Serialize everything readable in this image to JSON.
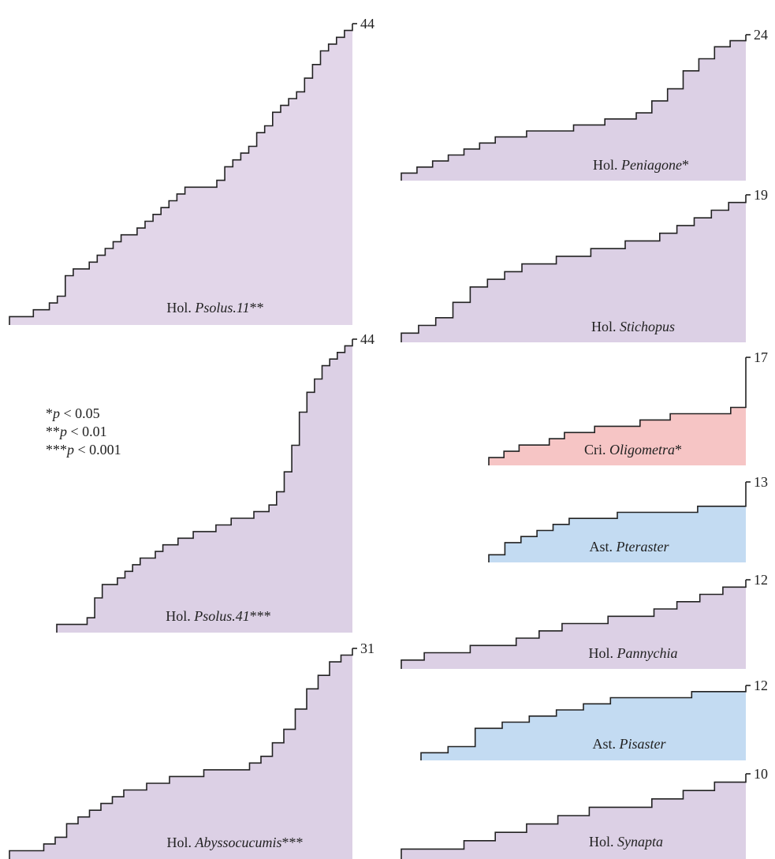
{
  "significance_legend": [
    {
      "stars": "*",
      "p": "p",
      "text": " < 0.05"
    },
    {
      "stars": "**",
      "p": "p",
      "text": " < 0.01"
    },
    {
      "stars": "***",
      "p": "p",
      "text": " < 0.001"
    }
  ],
  "chart_data": [
    {
      "type": "area",
      "group": "Hol.",
      "genus": "Psolus.11",
      "sig": "**",
      "max_label": "44",
      "color": "#e2d6e9",
      "values": [
        1,
        1,
        1,
        2,
        2,
        3,
        4,
        7,
        8,
        8,
        9,
        10,
        11,
        12,
        13,
        13,
        14,
        15,
        16,
        17,
        18,
        19,
        20,
        20,
        20,
        20,
        21,
        23,
        24,
        25,
        26,
        28,
        29,
        31,
        32,
        33,
        34,
        36,
        38,
        40,
        41,
        42,
        43,
        44
      ]
    },
    {
      "type": "area",
      "group": "Hol.",
      "genus": "Psolus.41",
      "sig": "***",
      "max_label": "44",
      "color": "#dcd0e5",
      "values": [
        1,
        1,
        1,
        1,
        2,
        5,
        7,
        7,
        8,
        9,
        10,
        11,
        11,
        12,
        13,
        13,
        14,
        14,
        15,
        15,
        15,
        16,
        16,
        17,
        17,
        17,
        18,
        18,
        19,
        21,
        24,
        28,
        33,
        36,
        38,
        40,
        41,
        42,
        43,
        44
      ]
    },
    {
      "type": "area",
      "group": "Hol.",
      "genus": "Abyssocucumis",
      "sig": "***",
      "max_label": "31",
      "color": "#dcd0e5",
      "values": [
        1,
        1,
        1,
        2,
        3,
        5,
        6,
        7,
        8,
        9,
        10,
        10,
        11,
        11,
        12,
        12,
        12,
        13,
        13,
        13,
        13,
        14,
        15,
        17,
        19,
        22,
        25,
        27,
        29,
        30,
        31
      ]
    },
    {
      "type": "area",
      "group": "Hol.",
      "genus": "Peniagone",
      "sig": "*",
      "max_label": "24",
      "color": "#dcd0e5",
      "values": [
        1,
        2,
        3,
        4,
        5,
        6,
        7,
        7,
        8,
        8,
        8,
        9,
        9,
        10,
        10,
        11,
        13,
        15,
        18,
        20,
        22,
        23,
        24
      ]
    },
    {
      "type": "area",
      "group": "Hol.",
      "genus": "Stichopus",
      "sig": "",
      "max_label": "19",
      "color": "#dcd0e5",
      "values": [
        1,
        2,
        3,
        5,
        7,
        8,
        9,
        10,
        10,
        11,
        11,
        12,
        12,
        13,
        13,
        14,
        15,
        16,
        17,
        18,
        19
      ]
    },
    {
      "type": "area",
      "group": "Cri.",
      "genus": "Oligometra",
      "sig": "*",
      "max_label": "17",
      "color": "#f6c5c5",
      "values": [
        1,
        2,
        3,
        3,
        4,
        5,
        5,
        6,
        6,
        6,
        7,
        7,
        8,
        8,
        8,
        8,
        9,
        17
      ]
    },
    {
      "type": "area",
      "group": "Ast.",
      "genus": "Pteraster",
      "sig": "",
      "max_label": "13",
      "color": "#c3dbf2",
      "values": [
        1,
        3,
        4,
        5,
        6,
        7,
        7,
        7,
        8,
        8,
        8,
        8,
        8,
        9,
        9,
        9,
        13
      ]
    },
    {
      "type": "area",
      "group": "Hol.",
      "genus": "Pannychia",
      "sig": "",
      "max_label": "12",
      "color": "#dcd0e5",
      "values": [
        1,
        2,
        2,
        3,
        3,
        4,
        5,
        6,
        6,
        7,
        7,
        8,
        9,
        10,
        11,
        12
      ]
    },
    {
      "type": "area",
      "group": "Ast.",
      "genus": "Pisaster",
      "sig": "",
      "max_label": "12",
      "color": "#c3dbf2",
      "values": [
        1,
        2,
        5,
        6,
        7,
        8,
        9,
        10,
        10,
        10,
        11,
        11,
        12
      ]
    },
    {
      "type": "area",
      "group": "Hol.",
      "genus": "Synapta",
      "sig": "",
      "max_label": "10",
      "color": "#dcd0e5",
      "values": [
        1,
        1,
        2,
        3,
        4,
        5,
        6,
        6,
        7,
        8,
        9,
        10
      ]
    }
  ]
}
